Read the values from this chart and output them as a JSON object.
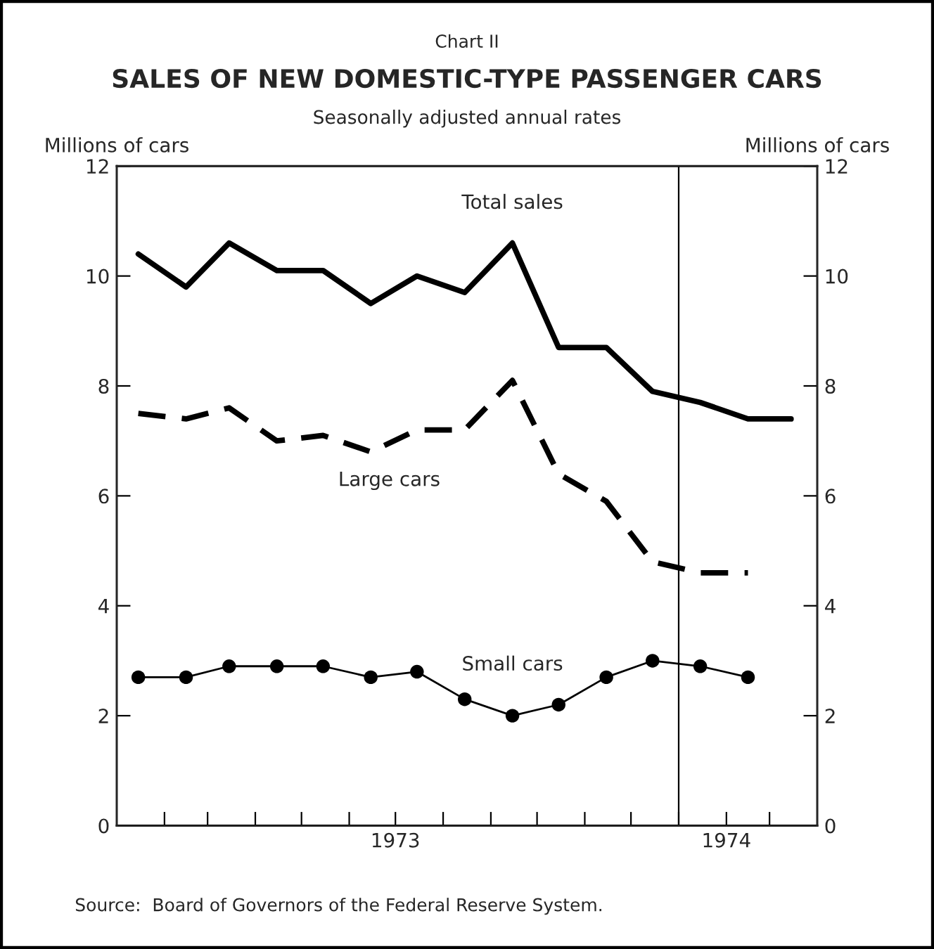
{
  "chart_data": {
    "type": "line",
    "title": "SALES OF NEW DOMESTIC-TYPE PASSENGER CARS",
    "subtitle": "Seasonally adjusted annual rates",
    "ylabel": "Millions of cars",
    "y2label": "Millions of cars",
    "annotations": [
      "Chart II",
      "Source:  Board of Governors of the Federal Reserve System."
    ],
    "xlim": [
      "1973-01",
      "1974-04"
    ],
    "xticks": [
      {
        "value": "1973-02",
        "label": null
      },
      {
        "value": "1973-03",
        "label": null
      },
      {
        "value": "1973-04",
        "label": null
      },
      {
        "value": "1973-05",
        "label": null
      },
      {
        "value": "1973-06",
        "label": null
      },
      {
        "value": "1973-07",
        "label": "1973"
      },
      {
        "value": "1973-08",
        "label": null
      },
      {
        "value": "1973-09",
        "label": null
      },
      {
        "value": "1973-10",
        "label": null
      },
      {
        "value": "1973-11",
        "label": null
      },
      {
        "value": "1973-12",
        "label": null
      },
      {
        "value": "1974-01",
        "label": null
      },
      {
        "value": "1974-02",
        "label": "1974"
      },
      {
        "value": "1974-03",
        "label": null
      }
    ],
    "ylim": [
      0,
      12
    ],
    "yticks": [
      0,
      2,
      4,
      6,
      8,
      10,
      12
    ],
    "y2lim": [
      0,
      12
    ],
    "y2ticks": [
      0,
      2,
      4,
      6,
      8,
      10,
      12
    ],
    "grid": false,
    "legend": false,
    "ref_lines": [
      {
        "axis": "x",
        "value": "1974-01",
        "color": "#000000",
        "line_style": "solid"
      }
    ],
    "series": [
      {
        "name": "Total sales",
        "color": "#000000",
        "line_style": "solid",
        "marker": "none",
        "x": [
          "1973-01-15",
          "1973-02-15",
          "1973-03-15",
          "1973-04-15",
          "1973-05-15",
          "1973-06-15",
          "1973-07-15",
          "1973-08-15",
          "1973-09-15",
          "1973-10-15",
          "1973-11-15",
          "1973-12-15",
          "1974-01-15",
          "1974-02-15",
          "1974-03-15"
        ],
        "values": [
          10.4,
          9.8,
          10.6,
          10.1,
          10.1,
          9.5,
          10.0,
          9.7,
          10.6,
          8.7,
          8.7,
          7.9,
          7.7,
          7.4,
          7.4
        ]
      },
      {
        "name": "Large cars",
        "color": "#000000",
        "line_style": "dashed",
        "marker": "none",
        "x": [
          "1973-01-15",
          "1973-02-15",
          "1973-03-15",
          "1973-04-15",
          "1973-05-15",
          "1973-06-15",
          "1973-07-15",
          "1973-08-15",
          "1973-09-15",
          "1973-10-15",
          "1973-11-15",
          "1973-12-15",
          "1974-01-15",
          "1974-02-15"
        ],
        "values": [
          7.5,
          7.4,
          7.6,
          7.0,
          7.1,
          6.8,
          7.2,
          7.2,
          8.1,
          6.4,
          5.9,
          4.8,
          4.6,
          4.6
        ]
      },
      {
        "name": "Small cars",
        "color": "#000000",
        "line_style": "solid",
        "marker": "circle",
        "x": [
          "1973-01-15",
          "1973-02-15",
          "1973-03-15",
          "1973-04-15",
          "1973-05-15",
          "1973-06-15",
          "1973-07-15",
          "1973-08-15",
          "1973-09-15",
          "1973-10-15",
          "1973-11-15",
          "1973-12-15",
          "1974-01-15",
          "1974-02-15"
        ],
        "values": [
          2.7,
          2.7,
          2.9,
          2.9,
          2.9,
          2.7,
          2.8,
          2.3,
          2.0,
          2.2,
          2.7,
          3.0,
          2.9,
          2.7
        ]
      }
    ]
  }
}
